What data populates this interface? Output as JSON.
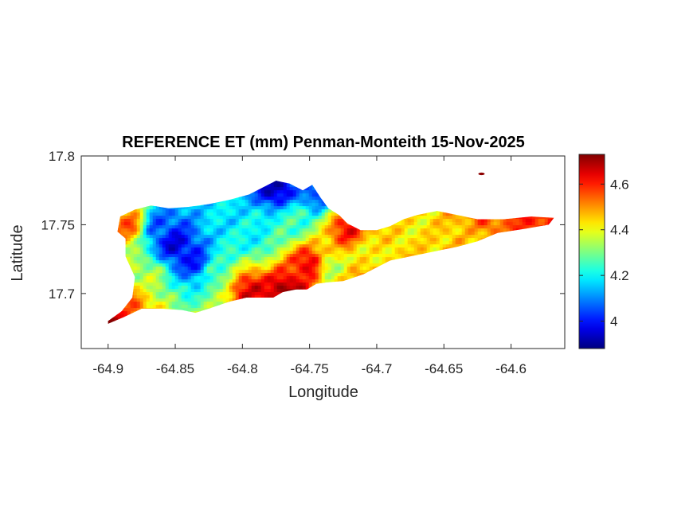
{
  "chart_data": {
    "type": "heatmap",
    "title": "REFERENCE ET (mm) Penman-Monteith 15-Nov-2025",
    "xlabel": "Longitude",
    "ylabel": "Latitude",
    "xlim": [
      -64.92,
      -64.56
    ],
    "ylim": [
      17.66,
      17.8
    ],
    "x_ticks": [
      {
        "value": -64.9,
        "label": "-64.9"
      },
      {
        "value": -64.85,
        "label": "-64.85"
      },
      {
        "value": -64.8,
        "label": "-64.8"
      },
      {
        "value": -64.75,
        "label": "-64.75"
      },
      {
        "value": -64.7,
        "label": "-64.7"
      },
      {
        "value": -64.65,
        "label": "-64.65"
      },
      {
        "value": -64.6,
        "label": "-64.6"
      }
    ],
    "y_ticks": [
      {
        "value": 17.7,
        "label": "17.7"
      },
      {
        "value": 17.75,
        "label": "17.75"
      },
      {
        "value": 17.8,
        "label": "17.8"
      }
    ],
    "colorbar": {
      "range": [
        3.88,
        4.73
      ],
      "colormap": "jet",
      "ticks": [
        {
          "value": 4.0,
          "label": "4"
        },
        {
          "value": 4.2,
          "label": "4.2"
        },
        {
          "value": 4.4,
          "label": "4.4"
        },
        {
          "value": 4.6,
          "label": "4.6"
        }
      ]
    },
    "grid": false,
    "region_outline": [
      [
        -64.9,
        17.68
      ],
      [
        -64.89,
        17.687
      ],
      [
        -64.882,
        17.697
      ],
      [
        -64.88,
        17.712
      ],
      [
        -64.887,
        17.727
      ],
      [
        -64.887,
        17.74
      ],
      [
        -64.893,
        17.745
      ],
      [
        -64.891,
        17.756
      ],
      [
        -64.88,
        17.761
      ],
      [
        -64.868,
        17.764
      ],
      [
        -64.855,
        17.762
      ],
      [
        -64.84,
        17.763
      ],
      [
        -64.825,
        17.765
      ],
      [
        -64.81,
        17.768
      ],
      [
        -64.795,
        17.772
      ],
      [
        -64.785,
        17.777
      ],
      [
        -64.775,
        17.782
      ],
      [
        -64.765,
        17.78
      ],
      [
        -64.755,
        17.775
      ],
      [
        -64.748,
        17.779
      ],
      [
        -64.742,
        17.77
      ],
      [
        -64.736,
        17.762
      ],
      [
        -64.728,
        17.757
      ],
      [
        -64.722,
        17.751
      ],
      [
        -64.712,
        17.746
      ],
      [
        -64.7,
        17.746
      ],
      [
        -64.69,
        17.749
      ],
      [
        -64.68,
        17.754
      ],
      [
        -64.67,
        17.757
      ],
      [
        -64.655,
        17.76
      ],
      [
        -64.64,
        17.757
      ],
      [
        -64.625,
        17.754
      ],
      [
        -64.605,
        17.754
      ],
      [
        -64.585,
        17.756
      ],
      [
        -64.568,
        17.755
      ],
      [
        -64.572,
        17.75
      ],
      [
        -64.59,
        17.747
      ],
      [
        -64.61,
        17.744
      ],
      [
        -64.625,
        17.738
      ],
      [
        -64.64,
        17.734
      ],
      [
        -64.655,
        17.731
      ],
      [
        -64.67,
        17.728
      ],
      [
        -64.69,
        17.724
      ],
      [
        -64.71,
        17.714
      ],
      [
        -64.725,
        17.709
      ],
      [
        -64.738,
        17.708
      ],
      [
        -64.745,
        17.707
      ],
      [
        -64.752,
        17.703
      ],
      [
        -64.76,
        17.703
      ],
      [
        -64.77,
        17.701
      ],
      [
        -64.777,
        17.697
      ],
      [
        -64.786,
        17.697
      ],
      [
        -64.797,
        17.697
      ],
      [
        -64.81,
        17.694
      ],
      [
        -64.825,
        17.689
      ],
      [
        -64.835,
        17.686
      ],
      [
        -64.845,
        17.688
      ],
      [
        -64.86,
        17.689
      ],
      [
        -64.875,
        17.689
      ],
      [
        -64.888,
        17.683
      ],
      [
        -64.9,
        17.678
      ]
    ],
    "islet": {
      "lon": -64.622,
      "lat": 17.787
    },
    "value_centers": [
      {
        "lon": -64.85,
        "lat": 17.735,
        "value": 3.95
      },
      {
        "lon": -64.835,
        "lat": 17.722,
        "value": 4.0
      },
      {
        "lon": -64.862,
        "lat": 17.748,
        "value": 4.05
      },
      {
        "lon": -64.775,
        "lat": 17.777,
        "value": 3.92
      },
      {
        "lon": -64.745,
        "lat": 17.772,
        "value": 4.05
      },
      {
        "lon": -64.81,
        "lat": 17.755,
        "value": 4.18
      },
      {
        "lon": -64.79,
        "lat": 17.74,
        "value": 4.2
      },
      {
        "lon": -64.76,
        "lat": 17.752,
        "value": 4.25
      },
      {
        "lon": -64.82,
        "lat": 17.714,
        "value": 4.28
      },
      {
        "lon": -64.87,
        "lat": 17.712,
        "value": 4.35
      },
      {
        "lon": -64.735,
        "lat": 17.72,
        "value": 4.35
      },
      {
        "lon": -64.705,
        "lat": 17.728,
        "value": 4.4
      },
      {
        "lon": -64.67,
        "lat": 17.745,
        "value": 4.42
      },
      {
        "lon": -64.63,
        "lat": 17.742,
        "value": 4.45
      },
      {
        "lon": -64.66,
        "lat": 17.733,
        "value": 4.45
      },
      {
        "lon": -64.885,
        "lat": 17.69,
        "value": 4.55
      },
      {
        "lon": -64.885,
        "lat": 17.75,
        "value": 4.55
      },
      {
        "lon": -64.795,
        "lat": 17.702,
        "value": 4.65
      },
      {
        "lon": -64.768,
        "lat": 17.7,
        "value": 4.72
      },
      {
        "lon": -64.75,
        "lat": 17.722,
        "value": 4.65
      },
      {
        "lon": -64.722,
        "lat": 17.747,
        "value": 4.62
      },
      {
        "lon": -64.7,
        "lat": 17.706,
        "value": 4.58
      },
      {
        "lon": -64.58,
        "lat": 17.754,
        "value": 4.6
      },
      {
        "lon": -64.62,
        "lat": 17.754,
        "value": 4.55
      },
      {
        "lon": -64.9,
        "lat": 17.68,
        "value": 4.7
      }
    ]
  }
}
